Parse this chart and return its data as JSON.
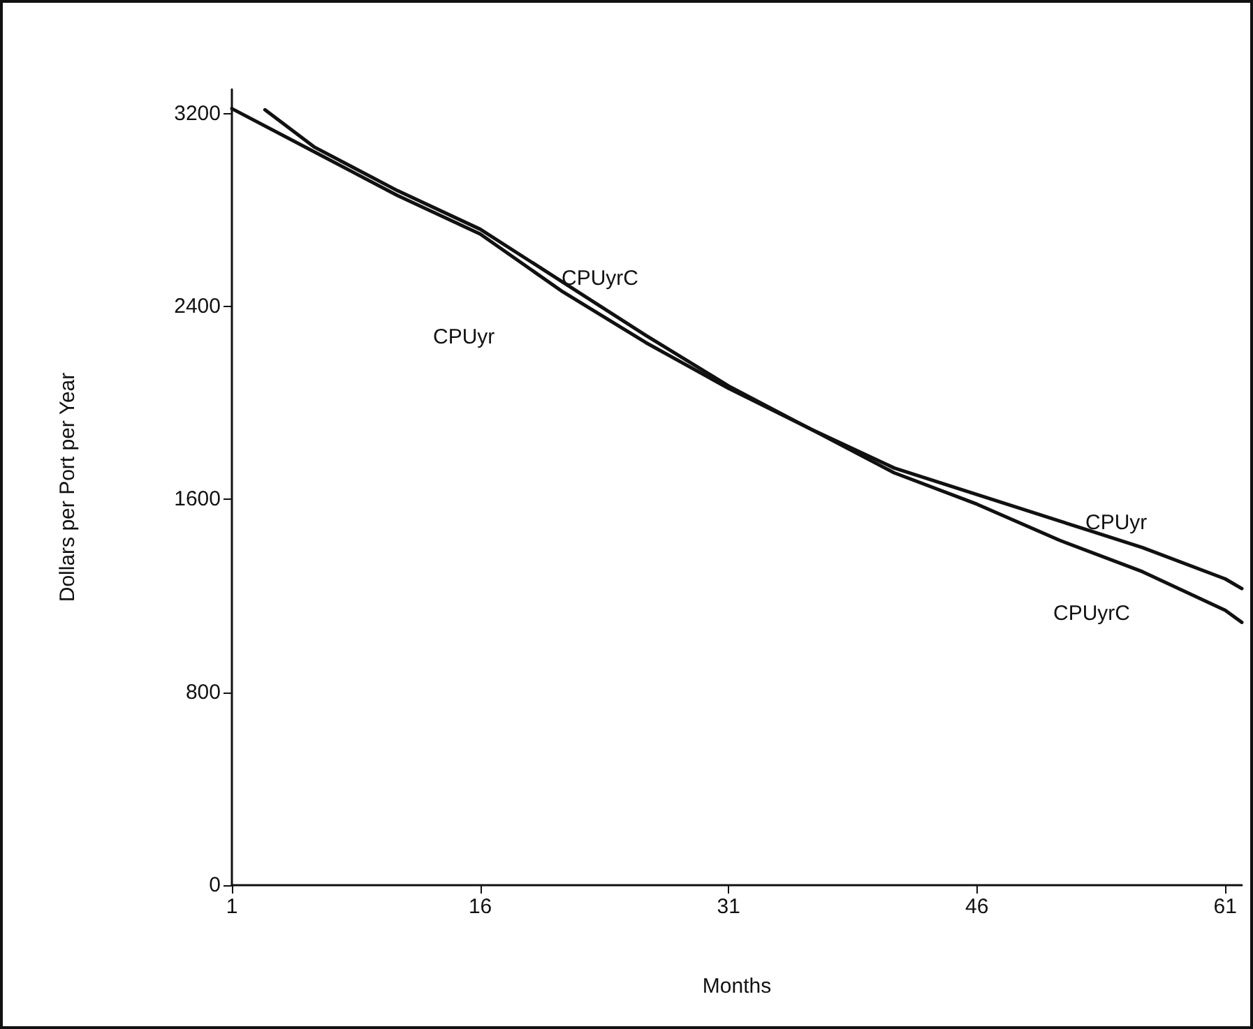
{
  "chart_data": {
    "type": "line",
    "xlabel": "Months",
    "ylabel": "Dollars per Port per Year",
    "xlim": [
      1,
      62
    ],
    "xticks": [
      1,
      16,
      31,
      46,
      61
    ],
    "ylim": [
      0,
      3300
    ],
    "yticks": [
      0,
      800,
      1600,
      2400,
      3200
    ],
    "grid": false,
    "marker": "none",
    "line_style": "solid",
    "series": [
      {
        "color": "#111111",
        "x": [
          1,
          6,
          11,
          16,
          21,
          26,
          31,
          36,
          41,
          46,
          51,
          56,
          61,
          62
        ],
        "values": [
          3220,
          3040,
          2860,
          2700,
          2460,
          2250,
          2060,
          1890,
          1730,
          1620,
          1510,
          1400,
          1270,
          1230
        ]
      },
      {
        "color": "#111111",
        "x": [
          3,
          6,
          11,
          16,
          21,
          26,
          31,
          36,
          41,
          46,
          51,
          56,
          61,
          62
        ],
        "values": [
          3215,
          3060,
          2880,
          2720,
          2500,
          2280,
          2070,
          1890,
          1710,
          1580,
          1430,
          1300,
          1140,
          1090
        ]
      }
    ],
    "annotations": [
      "CPUyrC",
      "CPUyr",
      "CPUyr",
      "CPUyrC"
    ]
  }
}
